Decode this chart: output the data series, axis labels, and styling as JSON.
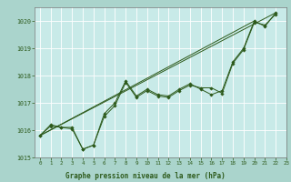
{
  "title": "Graphe pression niveau de la mer (hPa)",
  "background_color": "#aad4cc",
  "plot_bg_color": "#c8eae8",
  "grid_color": "#ffffff",
  "line_color": "#2d5a1b",
  "marker_color": "#2d5a1b",
  "ylim": [
    1015,
    1020.5
  ],
  "xlim": [
    -0.5,
    23
  ],
  "yticks": [
    1015,
    1016,
    1017,
    1018,
    1019,
    1020
  ],
  "xticks": [
    0,
    1,
    2,
    3,
    4,
    5,
    6,
    7,
    8,
    9,
    10,
    11,
    12,
    13,
    14,
    15,
    16,
    17,
    18,
    19,
    20,
    21,
    22,
    23
  ],
  "series": [
    [
      1015.8,
      1016.2,
      1016.1,
      1016.1,
      1015.3,
      1015.45,
      1016.6,
      1017.0,
      1017.8,
      1017.25,
      1017.5,
      1017.3,
      1017.25,
      1017.5,
      1017.7,
      1017.5,
      1017.3,
      1017.45,
      1018.5,
      1019.0,
      1020.0,
      1019.8,
      1020.3,
      null
    ],
    [
      1015.8,
      1016.15,
      1016.1,
      1016.05,
      1015.3,
      1015.45,
      1016.5,
      1016.9,
      1017.75,
      1017.2,
      1017.45,
      1017.25,
      1017.2,
      1017.45,
      1017.65,
      1017.55,
      1017.55,
      1017.35,
      1018.45,
      1018.95,
      1019.95,
      1019.85,
      1020.25,
      null
    ]
  ],
  "straight_lines": [
    {
      "x": [
        0,
        20
      ],
      "y": [
        1015.8,
        1020.0
      ]
    },
    {
      "x": [
        0,
        22
      ],
      "y": [
        1015.8,
        1020.3
      ]
    }
  ]
}
